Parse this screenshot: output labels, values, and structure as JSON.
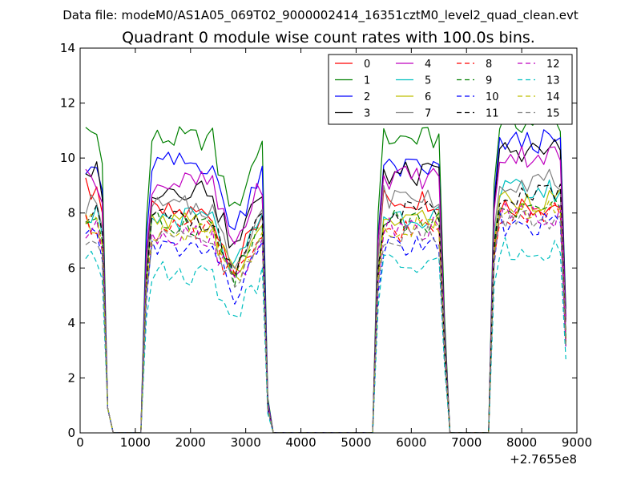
{
  "chart_data": {
    "type": "line",
    "suptitle": "Data file: modeM0/AS1A05_069T02_9000002414_16351cztM0_level2_quad_clean.evt",
    "title": "Quadrant 0 module wise count rates with 100.0s bins.",
    "xlabel": "",
    "ylabel": "",
    "x_offset_label": "+2.7655e8",
    "xlim": [
      0,
      9000
    ],
    "ylim": [
      0,
      14
    ],
    "xticks": [
      "0",
      "1000",
      "2000",
      "3000",
      "4000",
      "5000",
      "6000",
      "7000",
      "8000",
      "9000"
    ],
    "yticks": [
      "0",
      "2",
      "4",
      "6",
      "8",
      "10",
      "12",
      "14"
    ],
    "legend_position": "top-right",
    "legend_columns": 4,
    "segments": [
      {
        "start": 100,
        "end": 800
      },
      {
        "start": 1100,
        "end": 3500
      },
      {
        "start": 5300,
        "end": 6700
      },
      {
        "start": 7400,
        "end": 8800
      }
    ],
    "series": [
      {
        "name": "0",
        "color": "#ff0000",
        "dash": "solid",
        "levels": [
          8.9,
          8.0,
          8.5,
          8.3
        ]
      },
      {
        "name": "1",
        "color": "#008000",
        "dash": "solid",
        "levels": [
          10.9,
          10.7,
          10.7,
          11.3
        ]
      },
      {
        "name": "2",
        "color": "#0000ff",
        "dash": "solid",
        "levels": [
          9.8,
          9.8,
          9.6,
          10.6
        ]
      },
      {
        "name": "3",
        "color": "#000000",
        "dash": "solid",
        "levels": [
          9.5,
          8.9,
          9.4,
          10.3
        ]
      },
      {
        "name": "4",
        "color": "#bf00bf",
        "dash": "solid",
        "levels": [
          9.3,
          9.1,
          9.3,
          10.1
        ]
      },
      {
        "name": "5",
        "color": "#00bfbf",
        "dash": "solid",
        "levels": [
          8.0,
          7.8,
          7.9,
          8.8
        ]
      },
      {
        "name": "6",
        "color": "#bfbf00",
        "dash": "solid",
        "levels": [
          7.7,
          7.6,
          7.8,
          8.5
        ]
      },
      {
        "name": "7",
        "color": "#808080",
        "dash": "solid",
        "levels": [
          8.3,
          8.2,
          8.6,
          9.2
        ]
      },
      {
        "name": "8",
        "color": "#ff0000",
        "dash": "dashed",
        "levels": [
          7.5,
          7.3,
          7.4,
          8.0
        ]
      },
      {
        "name": "9",
        "color": "#008000",
        "dash": "dashed",
        "levels": [
          7.8,
          7.6,
          7.7,
          8.2
        ]
      },
      {
        "name": "10",
        "color": "#0000ff",
        "dash": "dashed",
        "levels": [
          7.0,
          6.7,
          6.8,
          7.6
        ]
      },
      {
        "name": "11",
        "color": "#000000",
        "dash": "dashed",
        "levels": [
          8.1,
          7.8,
          8.0,
          8.6
        ]
      },
      {
        "name": "12",
        "color": "#bf00bf",
        "dash": "dashed",
        "levels": [
          7.3,
          7.2,
          7.4,
          7.9
        ]
      },
      {
        "name": "13",
        "color": "#00bfbf",
        "dash": "dashed",
        "levels": [
          6.2,
          5.8,
          6.1,
          6.7
        ]
      },
      {
        "name": "14",
        "color": "#bfbf00",
        "dash": "dashed",
        "levels": [
          7.6,
          7.4,
          7.5,
          8.1
        ]
      },
      {
        "name": "15",
        "color": "#808080",
        "dash": "dashed",
        "levels": [
          7.2,
          7.0,
          7.2,
          7.8
        ]
      }
    ]
  }
}
